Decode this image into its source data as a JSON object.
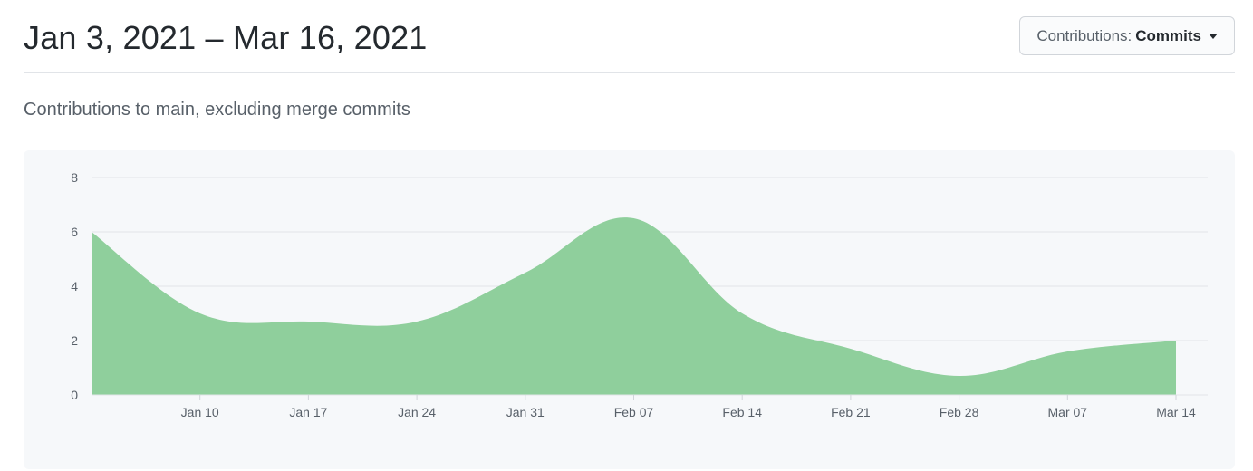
{
  "header": {
    "date_range": "Jan 3, 2021 – Mar 16, 2021",
    "dropdown_label": "Contributions:",
    "dropdown_value": "Commits"
  },
  "subtitle": "Contributions to main, excluding merge commits",
  "colors": {
    "area_fill": "#8fcf9c",
    "grid": "#e1e4e8",
    "chart_bg": "#f6f8fa"
  },
  "chart_data": {
    "type": "area",
    "title": "",
    "xlabel": "",
    "ylabel": "",
    "ylim": [
      0,
      8
    ],
    "yticks": [
      "0",
      "2",
      "4",
      "6",
      "8"
    ],
    "grid": true,
    "x_ticks": [
      "Jan 10",
      "Jan 17",
      "Jan 24",
      "Jan 31",
      "Feb 07",
      "Feb 14",
      "Feb 21",
      "Feb 28",
      "Mar 07",
      "Mar 14"
    ],
    "x": [
      "2021-01-03",
      "2021-01-10",
      "2021-01-17",
      "2021-01-24",
      "2021-01-31",
      "2021-02-07",
      "2021-02-14",
      "2021-02-21",
      "2021-02-28",
      "2021-03-07",
      "2021-03-14"
    ],
    "series": [
      {
        "values": [
          6,
          3,
          2.7,
          2.7,
          4.5,
          6.5,
          3,
          1.7,
          0.7,
          1.6,
          2
        ]
      }
    ]
  }
}
